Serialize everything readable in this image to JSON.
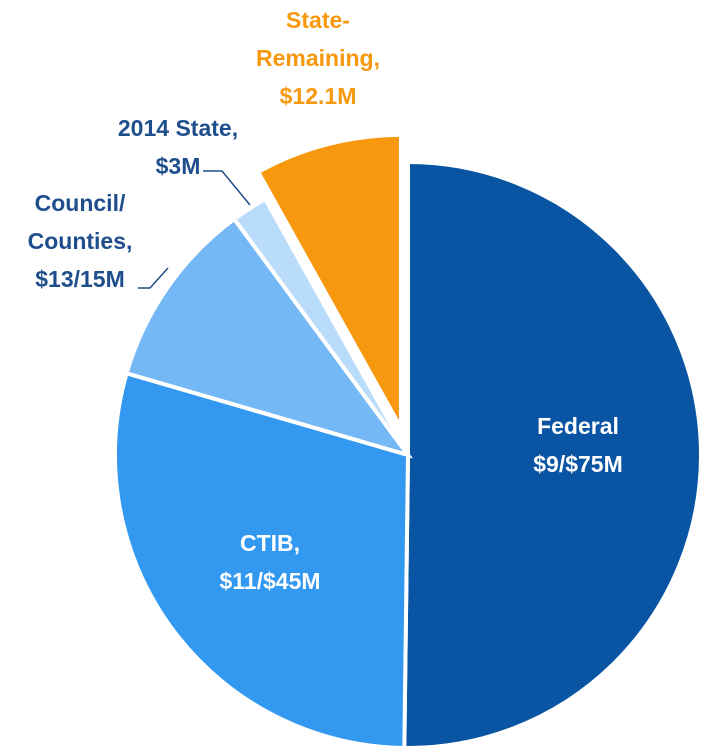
{
  "chart_data": {
    "type": "pie",
    "categories": [
      [
        "Federal",
        "$9/$75M"
      ],
      [
        "CTIB,",
        "$11/$45M"
      ],
      [
        "Council/",
        "Counties,",
        "$13/15M"
      ],
      [
        "2014 State,",
        "$3M"
      ],
      [
        "State-",
        "Remaining,",
        "$12.1M"
      ]
    ],
    "values": [
      50.2,
      29.3,
      10.4,
      2,
      8.1
    ],
    "colors": [
      "#0a55a3",
      "#3399f0",
      "#74b8f5",
      "#b9dcfb",
      "#f7980f"
    ],
    "exploded": [
      false,
      false,
      false,
      false,
      true
    ]
  }
}
